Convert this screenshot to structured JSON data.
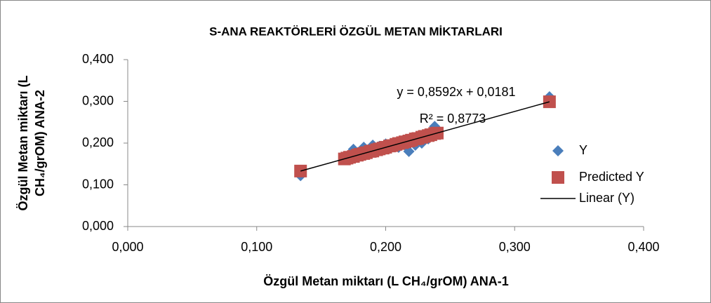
{
  "chart_data": {
    "type": "scatter",
    "title": "S-ANA REAKTÖRLERİ ÖZGÜL METAN MİKTARLARI",
    "x_label": "Özgül Metan miktarı (L CH₄/grOM) ANA-1",
    "y_label": [
      "Özgül Metan miktarı (L",
      "CH₄/grOM) ANA-2"
    ],
    "x": [
      0.134,
      0.168,
      0.17,
      0.172,
      0.175,
      0.178,
      0.18,
      0.183,
      0.185,
      0.188,
      0.19,
      0.193,
      0.195,
      0.198,
      0.2,
      0.203,
      0.205,
      0.208,
      0.21,
      0.213,
      0.215,
      0.218,
      0.22,
      0.223,
      0.225,
      0.228,
      0.23,
      0.233,
      0.235,
      0.238,
      0.24,
      0.327
    ],
    "series": [
      {
        "name": "Y",
        "color": "#4a7ebb",
        "marker": "diamond",
        "values": [
          0.122,
          0.165,
          0.168,
          0.172,
          0.185,
          0.175,
          0.178,
          0.19,
          0.18,
          0.183,
          0.195,
          0.185,
          0.192,
          0.19,
          0.198,
          0.188,
          0.195,
          0.2,
          0.19,
          0.205,
          0.195,
          0.18,
          0.205,
          0.195,
          0.21,
          0.2,
          0.215,
          0.21,
          0.225,
          0.24,
          0.23,
          0.311
        ]
      },
      {
        "name": "Predicted Y",
        "color": "#c0504d",
        "marker": "square",
        "values": [
          0.133,
          0.162,
          0.164,
          0.166,
          0.168,
          0.171,
          0.173,
          0.175,
          0.177,
          0.18,
          0.181,
          0.184,
          0.186,
          0.188,
          0.19,
          0.193,
          0.194,
          0.197,
          0.199,
          0.201,
          0.203,
          0.205,
          0.207,
          0.21,
          0.211,
          0.214,
          0.216,
          0.218,
          0.22,
          0.223,
          0.224,
          0.299
        ]
      }
    ],
    "trendline": {
      "name": "Linear (Y)",
      "color": "#000000",
      "x": [
        0.134,
        0.327
      ],
      "values": [
        0.133,
        0.299
      ]
    },
    "annotations": [
      "y = 0,8592x + 0,0181",
      "R² = 0,8773"
    ],
    "xlim": [
      0,
      0.4
    ],
    "xticks": [
      {
        "value": 0,
        "label": "0,000"
      },
      {
        "value": 0.1,
        "label": "0,100"
      },
      {
        "value": 0.2,
        "label": "0,200"
      },
      {
        "value": 0.3,
        "label": "0,300"
      },
      {
        "value": 0.4,
        "label": "0,400"
      }
    ],
    "ylim": [
      0,
      0.4
    ],
    "yticks": [
      {
        "value": 0,
        "label": "0,000"
      },
      {
        "value": 0.1,
        "label": "0,100"
      },
      {
        "value": 0.2,
        "label": "0,200"
      },
      {
        "value": 0.3,
        "label": "0,300"
      },
      {
        "value": 0.4,
        "label": "0,400"
      }
    ],
    "grid": false,
    "legend": "right"
  }
}
